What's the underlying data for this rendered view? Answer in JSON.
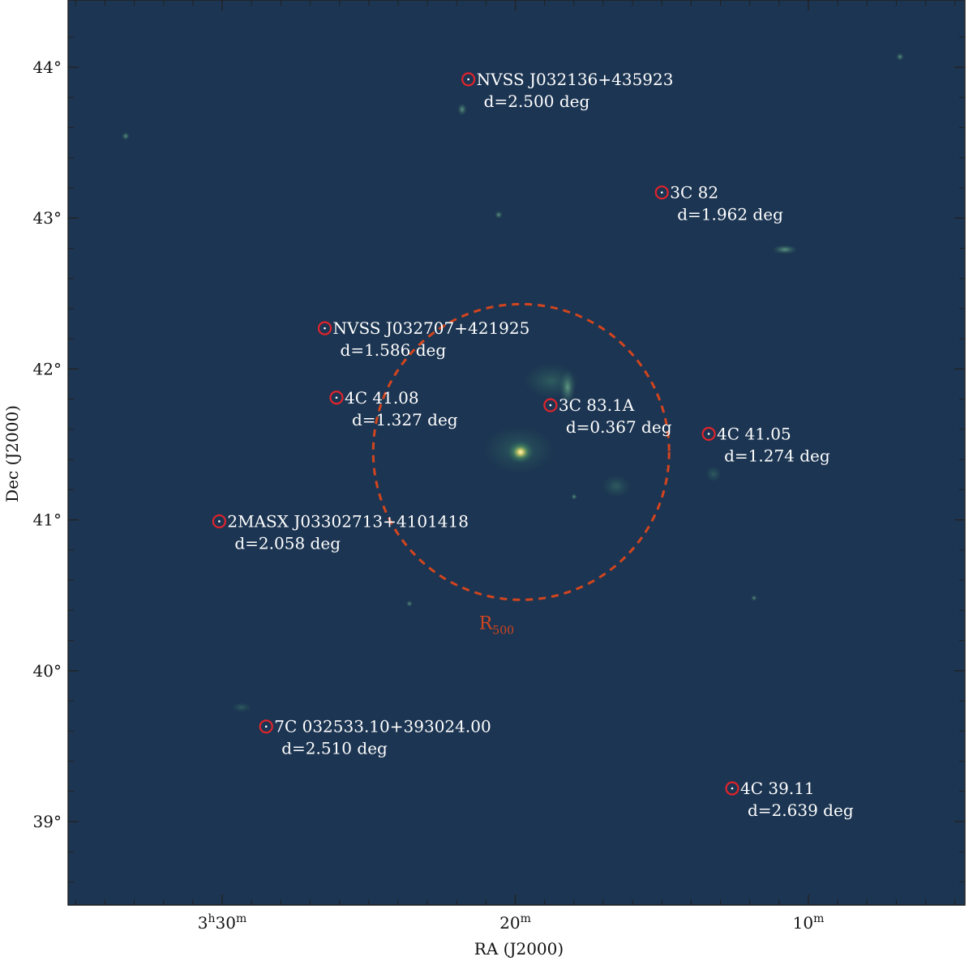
{
  "axes": {
    "x_label": "RA (J2000)",
    "y_label": "Dec (J2000)",
    "x_ticks": [
      {
        "label_main": "3",
        "label_sup1": "h",
        "label_mid": "30",
        "label_sup2": "m",
        "ra_min": 30
      },
      {
        "label_main": "20",
        "label_sup2": "m",
        "ra_min": 20
      },
      {
        "label_main": "10",
        "label_sup2": "m",
        "ra_min": 10
      }
    ],
    "y_ticks": [
      {
        "label": "44°",
        "dec": 44
      },
      {
        "label": "43°",
        "dec": 43
      },
      {
        "label": "42°",
        "dec": 42
      },
      {
        "label": "41°",
        "dec": 41
      },
      {
        "label": "40°",
        "dec": 40
      },
      {
        "label": "39°",
        "dec": 39
      }
    ]
  },
  "r500": {
    "label_main": "R",
    "label_sub": "500",
    "center_ra_min": 19.8,
    "center_dec": 41.45,
    "radius_deg": 0.98,
    "color": "#d2451e"
  },
  "sources": [
    {
      "name": "NVSS J032136+435923",
      "distance": "d=2.500 deg",
      "ra_min": 21.6,
      "dec": 43.92
    },
    {
      "name": "3C 82",
      "distance": "d=1.962 deg",
      "ra_min": 15.0,
      "dec": 43.17
    },
    {
      "name": "NVSS J032707+421925",
      "distance": "d=1.586 deg",
      "ra_min": 26.5,
      "dec": 42.27
    },
    {
      "name": "4C 41.08",
      "distance": "d=1.327 deg",
      "ra_min": 26.1,
      "dec": 41.81
    },
    {
      "name": "3C 83.1A",
      "distance": "d=0.367 deg",
      "ra_min": 18.8,
      "dec": 41.76
    },
    {
      "name": "4C 41.05",
      "distance": "d=1.274 deg",
      "ra_min": 13.4,
      "dec": 41.57
    },
    {
      "name": "2MASX J03302713+4101418",
      "distance": "d=2.058 deg",
      "ra_min": 30.1,
      "dec": 40.99
    },
    {
      "name": "7C 032533.10+393024.00",
      "distance": "d=2.510 deg",
      "ra_min": 28.5,
      "dec": 39.63
    },
    {
      "name": "4C 39.11",
      "distance": "d=2.639 deg",
      "ra_min": 12.6,
      "dec": 39.22
    }
  ],
  "colors": {
    "sky_background": "#1c3552",
    "marker_ring": "#e0242b",
    "label_text": "#ffffff",
    "frame": "#222222"
  }
}
